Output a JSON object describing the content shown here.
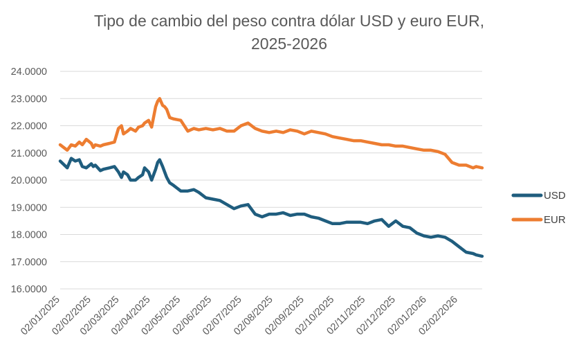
{
  "chart_data": {
    "type": "line",
    "title_lines": [
      "Tipo de cambio del peso contra dólar USD y euro EUR,",
      "2025-2026"
    ],
    "ylim": [
      16,
      24
    ],
    "y_ticks": [
      "16.0000",
      "17.0000",
      "18.0000",
      "19.0000",
      "20.0000",
      "21.0000",
      "22.0000",
      "23.0000",
      "24.0000"
    ],
    "x_range": [
      "2025-01-02",
      "2026-02-26"
    ],
    "x_ticks": [
      "02/01/2025",
      "02/02/2025",
      "02/03/2025",
      "02/04/2025",
      "02/05/2025",
      "02/06/2025",
      "02/07/2025",
      "02/08/2025",
      "02/09/2025",
      "02/10/2025",
      "02/11/2025",
      "02/12/2025",
      "02/01/2026",
      "02/02/2026"
    ],
    "grid": true,
    "legend": "right",
    "series": [
      {
        "name": "USD",
        "color": "#1f5d7e",
        "x": [
          "2025-01-02",
          "2025-01-09",
          "2025-01-13",
          "2025-01-17",
          "2025-01-21",
          "2025-01-24",
          "2025-01-28",
          "2025-02-02",
          "2025-02-04",
          "2025-02-06",
          "2025-02-11",
          "2025-02-14",
          "2025-02-20",
          "2025-02-25",
          "2025-03-01",
          "2025-03-04",
          "2025-03-06",
          "2025-03-10",
          "2025-03-13",
          "2025-03-18",
          "2025-03-21",
          "2025-03-25",
          "2025-03-27",
          "2025-03-31",
          "2025-04-03",
          "2025-04-07",
          "2025-04-09",
          "2025-04-11",
          "2025-04-14",
          "2025-04-16",
          "2025-04-18",
          "2025-04-21",
          "2025-04-25",
          "2025-05-02",
          "2025-05-09",
          "2025-05-15",
          "2025-05-20",
          "2025-05-27",
          "2025-06-03",
          "2025-06-10",
          "2025-06-17",
          "2025-06-24",
          "2025-07-01",
          "2025-07-08",
          "2025-07-15",
          "2025-07-22",
          "2025-07-29",
          "2025-08-05",
          "2025-08-12",
          "2025-08-19",
          "2025-08-26",
          "2025-09-02",
          "2025-09-09",
          "2025-09-16",
          "2025-09-23",
          "2025-09-30",
          "2025-10-07",
          "2025-10-14",
          "2025-10-21",
          "2025-10-28",
          "2025-11-04",
          "2025-11-11",
          "2025-11-18",
          "2025-11-25",
          "2025-12-02",
          "2025-12-09",
          "2025-12-16",
          "2025-12-23",
          "2025-12-30",
          "2026-01-06",
          "2026-01-13",
          "2026-01-20",
          "2026-01-27",
          "2026-02-03",
          "2026-02-10",
          "2026-02-17",
          "2026-02-20",
          "2026-02-26"
        ],
        "values": [
          20.7,
          20.45,
          20.8,
          20.7,
          20.75,
          20.5,
          20.45,
          20.6,
          20.5,
          20.55,
          20.35,
          20.4,
          20.45,
          20.5,
          20.3,
          20.1,
          20.3,
          20.2,
          20.0,
          20.0,
          20.1,
          20.2,
          20.45,
          20.3,
          20.0,
          20.4,
          20.65,
          20.75,
          20.5,
          20.3,
          20.1,
          19.9,
          19.8,
          19.6,
          19.6,
          19.65,
          19.55,
          19.35,
          19.3,
          19.25,
          19.1,
          18.95,
          19.05,
          19.1,
          18.75,
          18.65,
          18.75,
          18.75,
          18.8,
          18.7,
          18.75,
          18.75,
          18.65,
          18.6,
          18.5,
          18.4,
          18.4,
          18.45,
          18.45,
          18.45,
          18.4,
          18.5,
          18.55,
          18.3,
          18.5,
          18.3,
          18.25,
          18.05,
          17.95,
          17.9,
          17.95,
          17.9,
          17.75,
          17.55,
          17.35,
          17.3,
          17.25,
          17.2
        ]
      },
      {
        "name": "EUR",
        "color": "#ed7d31",
        "x": [
          "2025-01-02",
          "2025-01-09",
          "2025-01-13",
          "2025-01-17",
          "2025-01-21",
          "2025-01-24",
          "2025-01-28",
          "2025-02-02",
          "2025-02-04",
          "2025-02-06",
          "2025-02-11",
          "2025-02-14",
          "2025-02-20",
          "2025-02-25",
          "2025-03-01",
          "2025-03-04",
          "2025-03-06",
          "2025-03-10",
          "2025-03-13",
          "2025-03-18",
          "2025-03-21",
          "2025-03-25",
          "2025-03-27",
          "2025-03-31",
          "2025-04-03",
          "2025-04-07",
          "2025-04-09",
          "2025-04-11",
          "2025-04-14",
          "2025-04-16",
          "2025-04-18",
          "2025-04-21",
          "2025-04-25",
          "2025-05-02",
          "2025-05-09",
          "2025-05-15",
          "2025-05-20",
          "2025-05-27",
          "2025-06-03",
          "2025-06-10",
          "2025-06-17",
          "2025-06-24",
          "2025-07-01",
          "2025-07-08",
          "2025-07-15",
          "2025-07-22",
          "2025-07-29",
          "2025-08-05",
          "2025-08-12",
          "2025-08-19",
          "2025-08-26",
          "2025-09-02",
          "2025-09-09",
          "2025-09-16",
          "2025-09-23",
          "2025-09-30",
          "2025-10-07",
          "2025-10-14",
          "2025-10-21",
          "2025-10-28",
          "2025-11-04",
          "2025-11-11",
          "2025-11-18",
          "2025-11-25",
          "2025-12-02",
          "2025-12-09",
          "2025-12-16",
          "2025-12-23",
          "2025-12-30",
          "2026-01-06",
          "2026-01-13",
          "2026-01-20",
          "2026-01-27",
          "2026-02-03",
          "2026-02-10",
          "2026-02-17",
          "2026-02-20",
          "2026-02-26"
        ],
        "values": [
          21.3,
          21.1,
          21.3,
          21.25,
          21.4,
          21.3,
          21.5,
          21.35,
          21.2,
          21.3,
          21.25,
          21.3,
          21.35,
          21.4,
          21.9,
          22.0,
          21.7,
          21.8,
          21.9,
          21.8,
          21.95,
          22.0,
          22.1,
          22.2,
          21.95,
          22.7,
          22.9,
          23.0,
          22.75,
          22.7,
          22.6,
          22.3,
          22.25,
          22.2,
          21.8,
          21.9,
          21.85,
          21.9,
          21.85,
          21.9,
          21.8,
          21.8,
          22.0,
          22.1,
          21.9,
          21.8,
          21.75,
          21.8,
          21.75,
          21.85,
          21.8,
          21.7,
          21.8,
          21.75,
          21.7,
          21.6,
          21.55,
          21.5,
          21.45,
          21.45,
          21.4,
          21.35,
          21.3,
          21.3,
          21.25,
          21.25,
          21.2,
          21.15,
          21.1,
          21.1,
          21.05,
          20.95,
          20.65,
          20.55,
          20.55,
          20.45,
          20.5,
          20.45
        ]
      }
    ]
  }
}
